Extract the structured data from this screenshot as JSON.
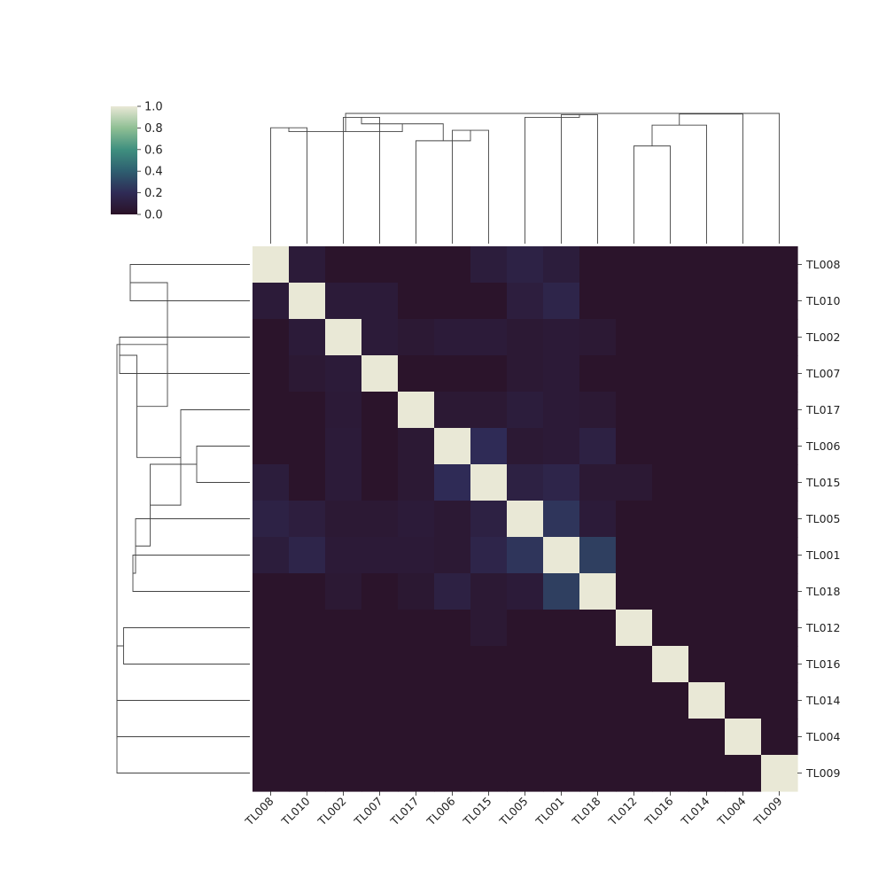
{
  "chart_data": {
    "type": "heatmap",
    "subtype": "clustermap",
    "title": "",
    "xlabel": "",
    "ylabel": "",
    "labels": [
      "TL008",
      "TL010",
      "TL002",
      "TL007",
      "TL017",
      "TL006",
      "TL015",
      "TL005",
      "TL001",
      "TL018",
      "TL012",
      "TL016",
      "TL014",
      "TL004",
      "TL009"
    ],
    "matrix": [
      [
        1.0,
        0.08,
        0.02,
        0.02,
        0.02,
        0.02,
        0.09,
        0.13,
        0.09,
        0.02,
        0.02,
        0.02,
        0.02,
        0.02,
        0.02
      ],
      [
        0.08,
        1.0,
        0.08,
        0.08,
        0.02,
        0.02,
        0.02,
        0.1,
        0.15,
        0.02,
        0.02,
        0.02,
        0.02,
        0.02,
        0.02
      ],
      [
        0.02,
        0.08,
        1.0,
        0.08,
        0.06,
        0.08,
        0.08,
        0.06,
        0.07,
        0.06,
        0.02,
        0.02,
        0.02,
        0.02,
        0.02
      ],
      [
        0.02,
        0.06,
        0.08,
        1.0,
        0.02,
        0.02,
        0.02,
        0.06,
        0.07,
        0.02,
        0.02,
        0.02,
        0.02,
        0.02,
        0.02
      ],
      [
        0.02,
        0.02,
        0.07,
        0.02,
        1.0,
        0.06,
        0.06,
        0.09,
        0.07,
        0.06,
        0.02,
        0.02,
        0.02,
        0.02,
        0.02
      ],
      [
        0.02,
        0.02,
        0.08,
        0.02,
        0.06,
        1.0,
        0.2,
        0.06,
        0.07,
        0.12,
        0.02,
        0.02,
        0.02,
        0.02,
        0.02
      ],
      [
        0.09,
        0.02,
        0.08,
        0.02,
        0.06,
        0.2,
        1.0,
        0.12,
        0.15,
        0.06,
        0.06,
        0.02,
        0.02,
        0.02,
        0.02
      ],
      [
        0.13,
        0.1,
        0.06,
        0.06,
        0.08,
        0.06,
        0.12,
        1.0,
        0.24,
        0.08,
        0.02,
        0.02,
        0.02,
        0.02,
        0.02
      ],
      [
        0.09,
        0.15,
        0.07,
        0.07,
        0.07,
        0.06,
        0.15,
        0.24,
        1.0,
        0.28,
        0.02,
        0.02,
        0.02,
        0.02,
        0.02
      ],
      [
        0.02,
        0.02,
        0.06,
        0.02,
        0.05,
        0.12,
        0.06,
        0.08,
        0.28,
        1.0,
        0.02,
        0.02,
        0.02,
        0.02,
        0.02
      ],
      [
        0.02,
        0.02,
        0.02,
        0.02,
        0.02,
        0.02,
        0.06,
        0.02,
        0.02,
        0.02,
        1.0,
        0.02,
        0.02,
        0.02,
        0.02
      ],
      [
        0.02,
        0.02,
        0.02,
        0.02,
        0.02,
        0.02,
        0.02,
        0.02,
        0.02,
        0.02,
        0.02,
        1.0,
        0.02,
        0.02,
        0.02
      ],
      [
        0.02,
        0.02,
        0.02,
        0.02,
        0.02,
        0.02,
        0.02,
        0.02,
        0.02,
        0.02,
        0.02,
        0.02,
        1.0,
        0.02,
        0.02
      ],
      [
        0.02,
        0.02,
        0.02,
        0.02,
        0.02,
        0.02,
        0.02,
        0.02,
        0.02,
        0.02,
        0.02,
        0.02,
        0.02,
        1.0,
        0.02
      ],
      [
        0.02,
        0.02,
        0.02,
        0.02,
        0.02,
        0.02,
        0.02,
        0.02,
        0.02,
        0.02,
        0.02,
        0.02,
        0.02,
        0.02,
        1.0
      ]
    ],
    "colorbar": {
      "range": [
        0.0,
        1.0
      ],
      "ticks": [
        "0.0",
        "0.2",
        "0.4",
        "0.6",
        "0.8",
        "1.0"
      ],
      "colormap": "cubehelix-teal",
      "stops": [
        "#2a1126",
        "#2f2b56",
        "#2e5e70",
        "#3f8f7f",
        "#8fbf94",
        "#e9e8d6"
      ]
    },
    "row_dendrogram_heights": [
      0.9,
      0.98,
      0.4,
      0.88,
      0.86,
      0.75,
      0.52,
      0.85,
      0.62,
      0.95,
      1.0,
      1.0,
      1.0,
      1.0
    ],
    "col_dendrogram_heights": [
      0.89,
      0.97,
      0.87,
      0.99,
      0.97,
      0.79,
      0.92,
      0.86,
      0.75,
      0.91,
      0.995,
      1.0,
      1.0,
      1.0
    ],
    "legend": "top-left colorbar"
  }
}
